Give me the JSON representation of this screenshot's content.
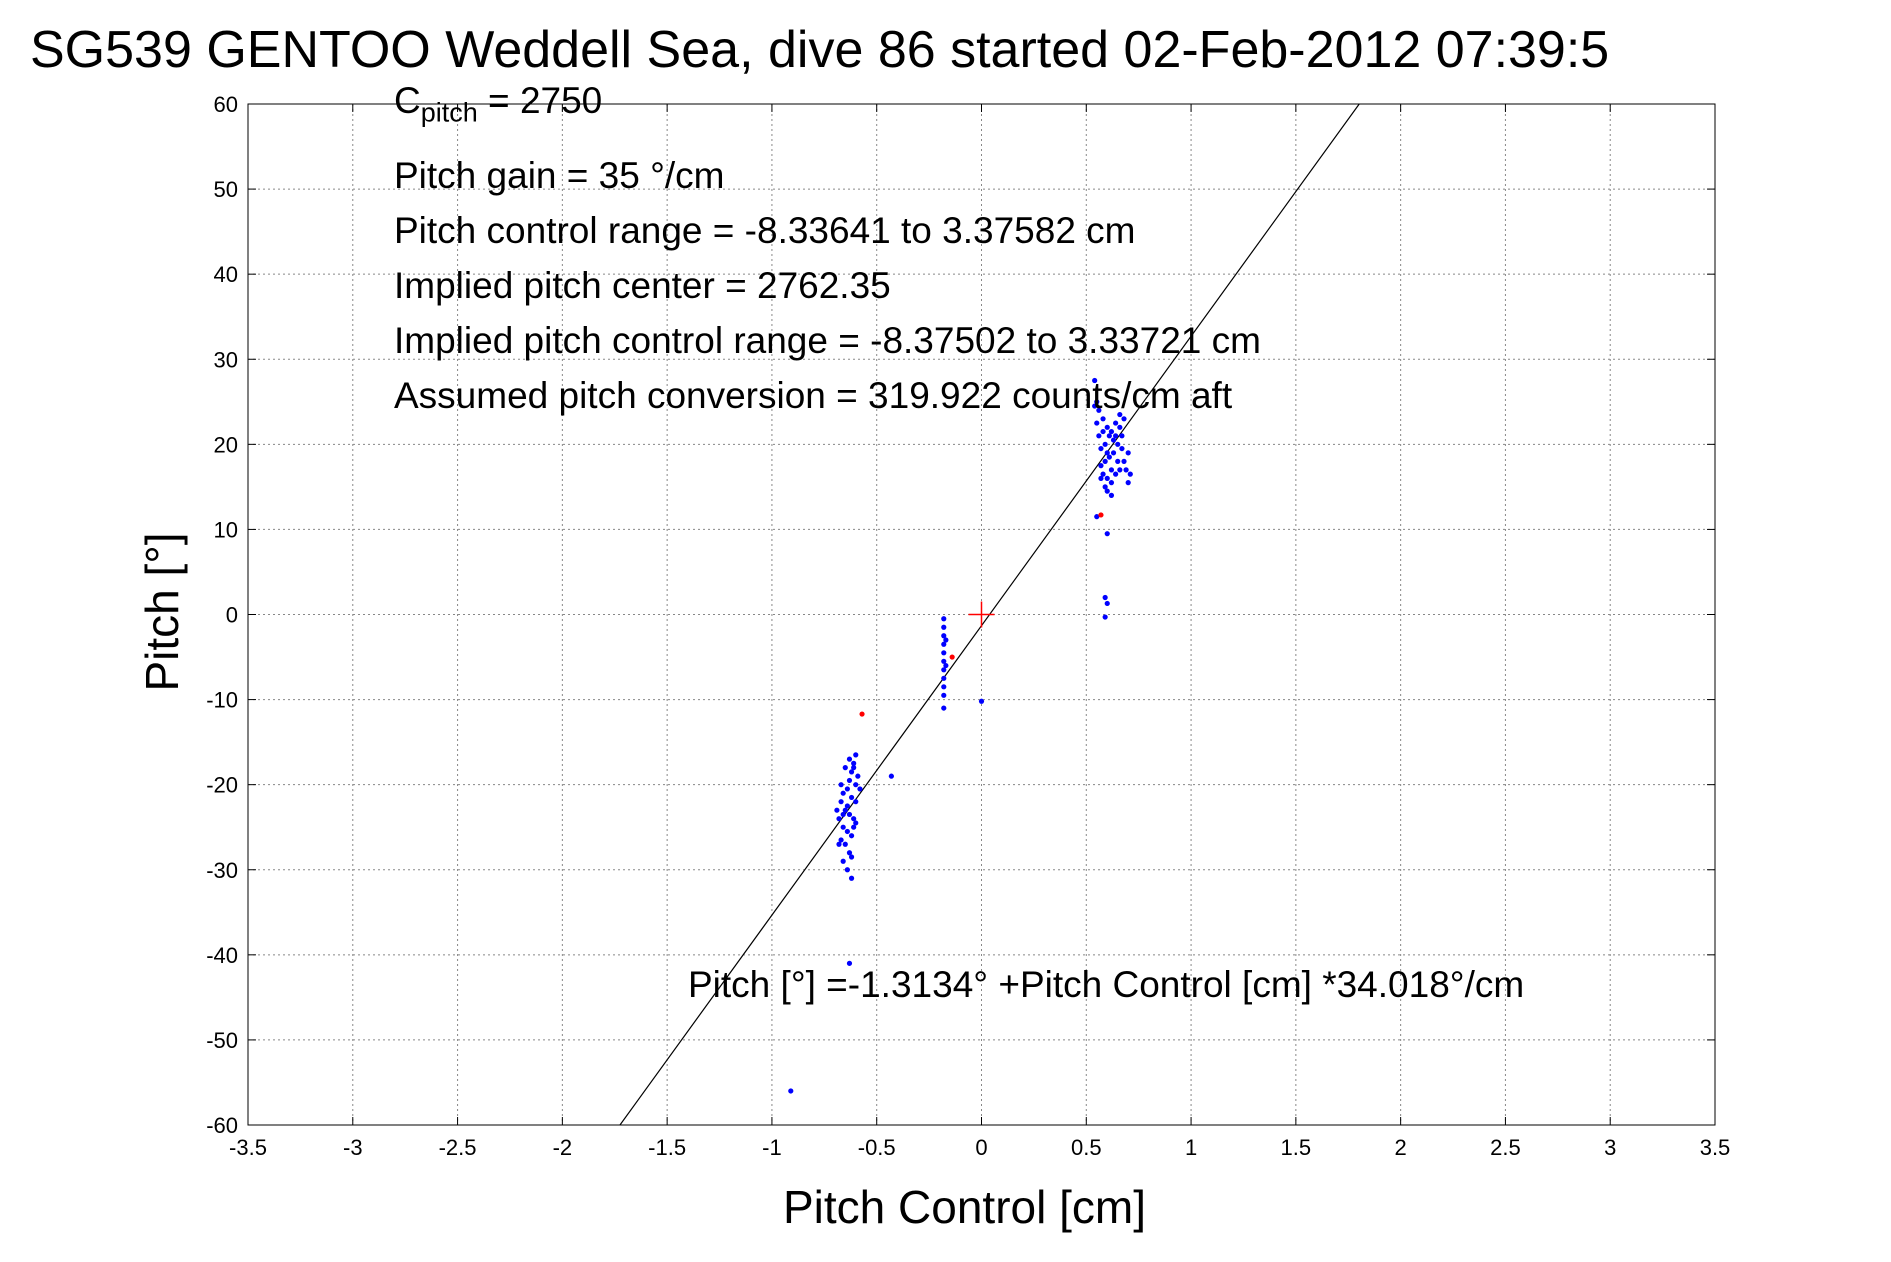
{
  "chart_data": {
    "type": "scatter",
    "title": "SG539 GENTOO Weddell Sea, dive 86 started 02-Feb-2012 07:39:5",
    "xlabel": "Pitch Control [cm]",
    "ylabel": "Pitch [°]",
    "xlim": [
      -3.5,
      3.5
    ],
    "ylim": [
      -60,
      60
    ],
    "xticks": [
      "-3.5",
      "-3",
      "-2.5",
      "-2",
      "-1.5",
      "-1",
      "-0.5",
      "0",
      "0.5",
      "1",
      "1.5",
      "2",
      "2.5",
      "3",
      "3.5"
    ],
    "yticks": [
      "60",
      "50",
      "40",
      "30",
      "20",
      "10",
      "0",
      "-10",
      "-20",
      "-30",
      "-40",
      "-50",
      "-60"
    ],
    "grid": true,
    "annotations": {
      "cpitch_main": "C",
      "cpitch_sub": "pitch",
      "cpitch_value": " = 2750",
      "gain": "Pitch gain = 35 °/cm",
      "control_range": "Pitch control range = -8.33641 to 3.37582 cm",
      "implied_center": "Implied pitch center = 2762.35",
      "implied_range": "Implied pitch control range = -8.37502 to 3.33721 cm",
      "conversion": "Assumed pitch conversion = 319.922 counts/cm aft",
      "fit_equation": "Pitch [°] =-1.3134° +Pitch Control [cm] *34.018°/cm"
    },
    "fit_line": {
      "intercept": -1.3134,
      "slope": 34.018,
      "color": "#000000"
    },
    "center_marker": {
      "x": 0,
      "y": 0,
      "color": "#ff0000"
    },
    "series": [
      {
        "color": "#0000ff",
        "points": [
          [
            0.54,
            27.5
          ],
          [
            0.55,
            25
          ],
          [
            0.56,
            24
          ],
          [
            0.58,
            23
          ],
          [
            0.6,
            22
          ],
          [
            0.62,
            21.5
          ],
          [
            0.64,
            22.5
          ],
          [
            0.66,
            23.5
          ],
          [
            0.67,
            21
          ],
          [
            0.65,
            20
          ],
          [
            0.63,
            19
          ],
          [
            0.61,
            18.5
          ],
          [
            0.59,
            18
          ],
          [
            0.57,
            17.5
          ],
          [
            0.58,
            16.5
          ],
          [
            0.6,
            16
          ],
          [
            0.62,
            15.5
          ],
          [
            0.64,
            16.5
          ],
          [
            0.66,
            17
          ],
          [
            0.68,
            18
          ],
          [
            0.7,
            19
          ],
          [
            0.69,
            17
          ],
          [
            0.71,
            16.5
          ],
          [
            0.7,
            15.5
          ],
          [
            0.63,
            20.5
          ],
          [
            0.61,
            21
          ],
          [
            0.59,
            20
          ],
          [
            0.57,
            19.5
          ],
          [
            0.56,
            21
          ],
          [
            0.55,
            22.5
          ],
          [
            0.65,
            18
          ],
          [
            0.67,
            19.5
          ],
          [
            0.62,
            17
          ],
          [
            0.6,
            19
          ],
          [
            0.58,
            21.5
          ],
          [
            0.64,
            21
          ],
          [
            0.66,
            22
          ],
          [
            0.68,
            23
          ],
          [
            0.6,
            14.5
          ],
          [
            0.62,
            14
          ],
          [
            0.59,
            15
          ],
          [
            0.57,
            16
          ],
          [
            0.54,
            24.5
          ],
          [
            0.55,
            11.5
          ],
          [
            0.6,
            9.5
          ],
          [
            0.59,
            2
          ],
          [
            0.6,
            1.3
          ],
          [
            0.59,
            -0.3
          ],
          [
            -0.18,
            -0.5
          ],
          [
            -0.18,
            -1.5
          ],
          [
            -0.18,
            -2.5
          ],
          [
            -0.18,
            -3.5
          ],
          [
            -0.18,
            -4.5
          ],
          [
            -0.18,
            -5.5
          ],
          [
            -0.18,
            -6.5
          ],
          [
            -0.18,
            -7.5
          ],
          [
            -0.18,
            -8.5
          ],
          [
            -0.18,
            -9.5
          ],
          [
            -0.18,
            -11
          ],
          [
            -0.17,
            -3
          ],
          [
            -0.17,
            -6
          ],
          [
            0.0,
            -10.2
          ],
          [
            -0.43,
            -19
          ],
          [
            -0.6,
            -16.5
          ],
          [
            -0.61,
            -17.5
          ],
          [
            -0.62,
            -18.5
          ],
          [
            -0.63,
            -19.5
          ],
          [
            -0.6,
            -20
          ],
          [
            -0.58,
            -20.5
          ],
          [
            -0.64,
            -20.5
          ],
          [
            -0.66,
            -21
          ],
          [
            -0.62,
            -21.5
          ],
          [
            -0.6,
            -22
          ],
          [
            -0.67,
            -22
          ],
          [
            -0.65,
            -23
          ],
          [
            -0.63,
            -23.5
          ],
          [
            -0.61,
            -24
          ],
          [
            -0.68,
            -24
          ],
          [
            -0.66,
            -25
          ],
          [
            -0.64,
            -25.5
          ],
          [
            -0.62,
            -26
          ],
          [
            -0.67,
            -26.5
          ],
          [
            -0.65,
            -27
          ],
          [
            -0.63,
            -28
          ],
          [
            -0.66,
            -29
          ],
          [
            -0.64,
            -30
          ],
          [
            -0.62,
            -31
          ],
          [
            -0.61,
            -18
          ],
          [
            -0.59,
            -19
          ],
          [
            -0.63,
            -17
          ],
          [
            -0.65,
            -18
          ],
          [
            -0.67,
            -20
          ],
          [
            -0.69,
            -23
          ],
          [
            -0.68,
            -27
          ],
          [
            -0.6,
            -24.5
          ],
          [
            -0.62,
            -28.5
          ],
          [
            -0.64,
            -22.5
          ],
          [
            -0.66,
            -23.5
          ],
          [
            -0.61,
            -25
          ],
          [
            -0.63,
            -41
          ],
          [
            -0.91,
            -56
          ]
        ]
      },
      {
        "color": "#ff0000",
        "points": [
          [
            0.57,
            11.7
          ],
          [
            -0.14,
            -5
          ],
          [
            -0.57,
            -11.7
          ]
        ]
      }
    ]
  }
}
